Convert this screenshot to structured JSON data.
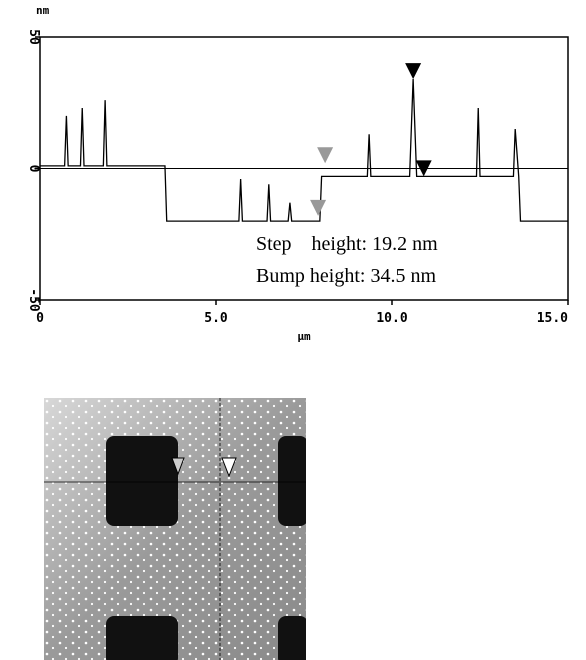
{
  "chart_data": {
    "type": "line",
    "y_label": "nm",
    "x_label": "µm",
    "x": [
      0,
      0.7,
      0.75,
      0.8,
      1.15,
      1.2,
      1.25,
      1.8,
      1.85,
      1.9,
      3.55,
      3.6,
      5.65,
      5.7,
      5.75,
      6.45,
      6.5,
      6.55,
      7.05,
      7.1,
      7.15,
      7.95,
      8.0,
      9.3,
      9.35,
      9.4,
      10.5,
      10.6,
      10.7,
      12.4,
      12.45,
      12.5,
      13.45,
      13.5,
      13.6,
      13.65,
      15
    ],
    "series": [
      {
        "color": "#000000",
        "values": [
          1,
          1,
          20,
          1,
          1,
          23,
          1,
          1,
          26,
          1,
          1,
          -20,
          -20,
          -4,
          -20,
          -20,
          -6,
          -20,
          -20,
          -13,
          -20,
          -20,
          -3,
          -3,
          13,
          -3,
          -3,
          34,
          -3,
          -3,
          23,
          -3,
          -3,
          15,
          -3,
          -20,
          -20
        ]
      }
    ],
    "xlim": [
      0,
      15
    ],
    "ylim": [
      -50,
      50
    ],
    "xticks": [
      0,
      {
        "value": 5,
        "label": "5.0"
      },
      {
        "value": 10,
        "label": "10.0"
      },
      {
        "value": 15,
        "label": "15.0"
      }
    ],
    "yticks": [
      -50,
      0,
      50
    ],
    "cursors": [
      {
        "x": 7.9,
        "y": -18,
        "color": "#999999"
      },
      {
        "x": 8.1,
        "y": 2,
        "color": "#999999"
      },
      {
        "x": 10.6,
        "y": 34,
        "color": "#000000"
      },
      {
        "x": 10.9,
        "y": -3,
        "color": "#000000"
      }
    ],
    "annotations": [
      "Step    height: 19.2 nm",
      "Bump height: 34.5 nm"
    ]
  }
}
